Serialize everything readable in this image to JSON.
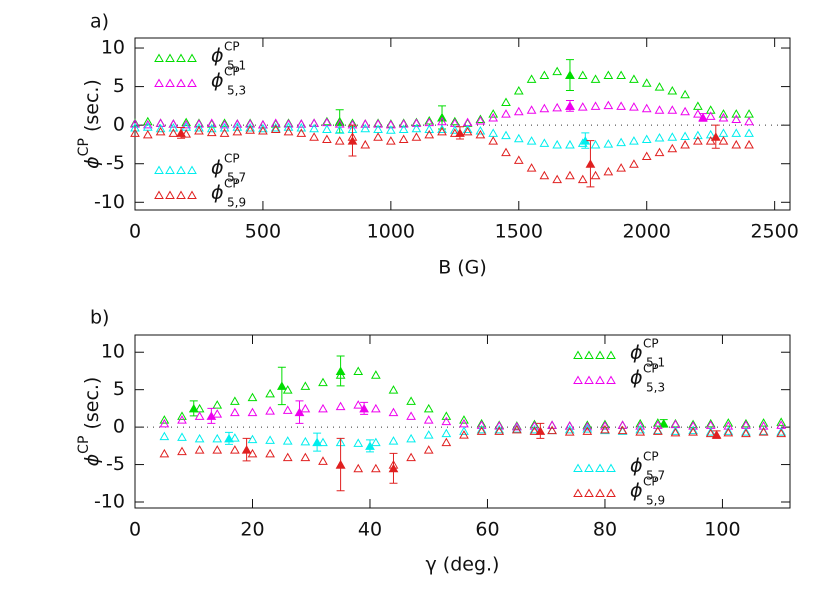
{
  "chart_data": [
    {
      "type": "scatter",
      "panel_label": "a)",
      "xlabel": "B (G)",
      "ylabel": "ϕ",
      "ylabel_superscript": "CP",
      "ylabel_rest": " (sec.)",
      "xlim": [
        0,
        2560
      ],
      "ylim": [
        -11,
        11.3
      ],
      "xticks": [
        0,
        500,
        1000,
        1500,
        2000,
        2500
      ],
      "yticks": [
        -10,
        -5,
        0,
        5,
        10
      ],
      "reference_line": 0,
      "x": [
        0,
        50,
        100,
        150,
        200,
        250,
        300,
        350,
        400,
        450,
        500,
        550,
        600,
        650,
        700,
        750,
        800,
        850,
        900,
        950,
        1000,
        1050,
        1100,
        1150,
        1200,
        1250,
        1300,
        1350,
        1400,
        1450,
        1500,
        1550,
        1600,
        1650,
        1700,
        1750,
        1800,
        1850,
        1900,
        1950,
        2000,
        2050,
        2100,
        2150,
        2200,
        2250,
        2300,
        2350,
        2400
      ],
      "series": [
        {
          "name": "ϕ",
          "superscript": "CP",
          "subscript": "5,1",
          "color": "#00dd00",
          "legend": "upper left",
          "values": [
            0.3,
            0.5,
            0.3,
            0.2,
            0.4,
            0.3,
            0.2,
            0.3,
            0.2,
            0.3,
            0.1,
            0.2,
            0.3,
            0.2,
            0.3,
            0.5,
            0.4,
            0.3,
            0.2,
            0.3,
            0.2,
            0.3,
            0.4,
            0.6,
            1.0,
            0.5,
            0.3,
            0.8,
            1.5,
            3,
            4.5,
            6,
            6.5,
            7,
            6.5,
            6.5,
            6,
            6.5,
            6.5,
            6,
            5.5,
            5,
            4.5,
            4,
            2.5,
            2,
            1.5,
            1.5,
            1.5
          ],
          "errorbars": [
            {
              "x": 800,
              "y": 0.5,
              "err": 1.5
            },
            {
              "x": 1200,
              "y": 1,
              "err": 1.5
            },
            {
              "x": 1700,
              "y": 6.5,
              "err": 2
            }
          ]
        },
        {
          "name": "ϕ",
          "superscript": "CP",
          "subscript": "5,3",
          "color": "#ee00ee",
          "legend": "upper left",
          "values": [
            0.2,
            0.1,
            0.3,
            0.2,
            0.1,
            0.2,
            0.3,
            0.1,
            0.2,
            0.2,
            0.1,
            0.3,
            0.2,
            0.2,
            0.3,
            0.4,
            0.2,
            0.1,
            0.2,
            0.2,
            0.1,
            0.2,
            0.3,
            0.4,
            0.5,
            0.3,
            0.4,
            0.6,
            1,
            1.5,
            1.8,
            2,
            2.2,
            2.3,
            2.5,
            2.4,
            2.5,
            2.6,
            2.5,
            2.4,
            2.2,
            2,
            2,
            1.8,
            1.5,
            1.2,
            1,
            0.8,
            0.5
          ],
          "errorbars": [
            {
              "x": 1700,
              "y": 2.5,
              "err": 0.7
            },
            {
              "x": 2220,
              "y": 1,
              "err": 0.5
            }
          ]
        },
        {
          "name": "ϕ",
          "superscript": "CP",
          "subscript": "5,7",
          "color": "#00eeee",
          "legend": "lower left",
          "values": [
            -0.3,
            -0.2,
            -0.4,
            -0.3,
            -0.2,
            -0.3,
            -0.4,
            -0.3,
            -0.2,
            -0.3,
            -0.4,
            -0.3,
            -0.2,
            -0.3,
            -0.4,
            -0.5,
            -0.6,
            -0.5,
            -0.4,
            -0.5,
            -0.6,
            -0.5,
            -0.4,
            -0.5,
            -0.5,
            -0.6,
            -0.5,
            -0.7,
            -1,
            -1.3,
            -1.7,
            -2,
            -2.3,
            -2.5,
            -2.5,
            -2.3,
            -2.5,
            -2.4,
            -2.2,
            -2,
            -1.8,
            -1.6,
            -1.5,
            -1.4,
            -1.3,
            -1.2,
            -1,
            -1,
            -1
          ],
          "errorbars": [
            {
              "x": 1760,
              "y": -2,
              "err": 1
            }
          ]
        },
        {
          "name": "ϕ",
          "superscript": "CP",
          "subscript": "5,9",
          "color": "#e02020",
          "legend": "lower left",
          "values": [
            -1,
            -1.2,
            -0.8,
            -1,
            -1.1,
            -0.7,
            -0.9,
            -1,
            -0.8,
            -0.6,
            -0.7,
            -0.5,
            -0.8,
            -1,
            -1.5,
            -1.8,
            -2,
            -1.5,
            -2.5,
            -1.5,
            -2,
            -1.8,
            -1.5,
            -1.2,
            -0.8,
            -1,
            -0.8,
            -1.2,
            -2,
            -3.5,
            -4.5,
            -5.5,
            -6.5,
            -7,
            -6.5,
            -7,
            -6.5,
            -6,
            -5.5,
            -5,
            -4,
            -3.5,
            -3,
            -2.5,
            -2,
            -2,
            -2,
            -2.5,
            -2.5
          ],
          "errorbars": [
            {
              "x": 180,
              "y": -1,
              "err": 0.7
            },
            {
              "x": 850,
              "y": -2,
              "err": 2
            },
            {
              "x": 1270,
              "y": -1,
              "err": 0.8
            },
            {
              "x": 1780,
              "y": -5,
              "err": 3
            },
            {
              "x": 2270,
              "y": -1.5,
              "err": 1.5
            }
          ]
        }
      ]
    },
    {
      "type": "scatter",
      "panel_label": "b)",
      "xlabel": "γ (deg.)",
      "ylabel": "ϕ",
      "ylabel_superscript": "CP",
      "ylabel_rest": " (sec.)",
      "xlim": [
        0,
        111.5
      ],
      "ylim": [
        -10.8,
        12.3
      ],
      "xticks": [
        0,
        20,
        40,
        60,
        80,
        100
      ],
      "yticks": [
        -10,
        -5,
        0,
        5,
        10
      ],
      "reference_line": 0,
      "x": [
        5,
        8,
        11,
        14,
        17,
        20,
        23,
        26,
        29,
        32,
        35,
        38,
        41,
        44,
        47,
        50,
        53,
        56,
        59,
        62,
        65,
        68,
        71,
        74,
        77,
        80,
        83,
        86,
        89,
        92,
        95,
        98,
        101,
        104,
        107,
        110
      ],
      "series": [
        {
          "name": "ϕ",
          "superscript": "CP",
          "subscript": "5,1",
          "color": "#00dd00",
          "legend": "upper right",
          "values": [
            1,
            1.5,
            2.5,
            3,
            3.5,
            4,
            4.5,
            5,
            5.5,
            6,
            7,
            7.5,
            7,
            5,
            3.5,
            2.5,
            1.5,
            1,
            0.5,
            0.3,
            0.2,
            0.4,
            0.3,
            0.2,
            0.3,
            0.4,
            0.3,
            0.5,
            0.6,
            0.5,
            0.4,
            0.5,
            0.6,
            0.5,
            0.6,
            0.7
          ],
          "errorbars": [
            {
              "x": 10,
              "y": 2.5,
              "err": 1
            },
            {
              "x": 25,
              "y": 5.5,
              "err": 2.5
            },
            {
              "x": 35,
              "y": 7.5,
              "err": 2
            },
            {
              "x": 90,
              "y": 0.5,
              "err": 0.5
            }
          ]
        },
        {
          "name": "ϕ",
          "superscript": "CP",
          "subscript": "5,3",
          "color": "#ee00ee",
          "legend": "upper right",
          "values": [
            0.5,
            1,
            1.5,
            1.8,
            2,
            2,
            2.2,
            2.3,
            2.5,
            2.5,
            2.8,
            3,
            2.5,
            2,
            1.5,
            1,
            0.8,
            0.5,
            0.3,
            0.2,
            0.1,
            0.2,
            0.3,
            0.2,
            0.1,
            0.2,
            0.3,
            0.2,
            0.3,
            0.4,
            0.2,
            0.3,
            0.2,
            0.3,
            0.2,
            0.3
          ],
          "errorbars": [
            {
              "x": 13,
              "y": 1.5,
              "err": 1
            },
            {
              "x": 28,
              "y": 2,
              "err": 1.5
            },
            {
              "x": 39,
              "y": 2.5,
              "err": 0.8
            }
          ]
        },
        {
          "name": "ϕ",
          "superscript": "CP",
          "subscript": "5,7",
          "color": "#00eeee",
          "legend": "lower right",
          "values": [
            -1.2,
            -1.3,
            -1.5,
            -1.5,
            -1.4,
            -1.6,
            -1.7,
            -1.8,
            -1.9,
            -2,
            -2,
            -2.1,
            -2,
            -1.8,
            -1.5,
            -1,
            -0.8,
            -0.5,
            -0.3,
            -0.3,
            -0.2,
            -0.3,
            -0.4,
            -0.3,
            -0.2,
            -0.4,
            -0.5,
            -0.3,
            -0.4,
            -0.5,
            -0.4,
            -0.6,
            -0.5,
            -0.6,
            -0.5,
            -0.6
          ],
          "errorbars": [
            {
              "x": 16,
              "y": -1.5,
              "err": 0.8
            },
            {
              "x": 31,
              "y": -2,
              "err": 1.2
            },
            {
              "x": 40,
              "y": -2.5,
              "err": 0.8
            }
          ]
        },
        {
          "name": "ϕ",
          "superscript": "CP",
          "subscript": "5,9",
          "color": "#e02020",
          "legend": "lower right",
          "values": [
            -3.5,
            -3.2,
            -3,
            -3,
            -3,
            -3.5,
            -3.5,
            -4,
            -4,
            -4.5,
            -5,
            -5.5,
            -5.5,
            -5,
            -4,
            -3,
            -2,
            -1,
            -0.5,
            -0.5,
            -0.3,
            -0.5,
            -0.4,
            -0.6,
            -0.5,
            -0.3,
            -0.4,
            -0.6,
            -0.5,
            -0.7,
            -0.6,
            -0.8,
            -0.7,
            -0.8,
            -0.6,
            -0.8
          ],
          "errorbars": [
            {
              "x": 19,
              "y": -3,
              "err": 1.5
            },
            {
              "x": 35,
              "y": -5,
              "err": 3.5
            },
            {
              "x": 44,
              "y": -5.5,
              "err": 2
            },
            {
              "x": 69,
              "y": -0.5,
              "err": 1
            },
            {
              "x": 99,
              "y": -1,
              "err": 0.5
            }
          ]
        }
      ]
    }
  ]
}
